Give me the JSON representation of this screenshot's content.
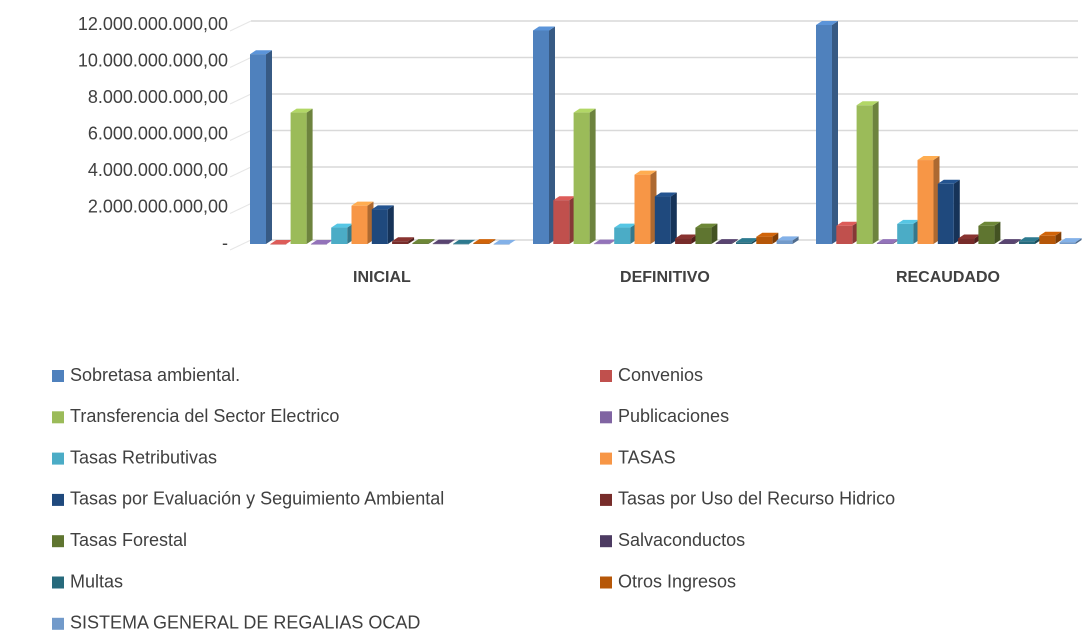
{
  "chart_data": {
    "type": "bar3d",
    "categories": [
      "INICIAL",
      "DEFINITIVO",
      "RECAUDADO"
    ],
    "series": [
      {
        "name": "Sobretasa ambiental.",
        "color": "#4f81bd",
        "values": [
          10400000000,
          11700000000,
          12000000000
        ]
      },
      {
        "name": "Convenios",
        "color": "#c0504d",
        "values": [
          0,
          2400000000,
          1000000000
        ]
      },
      {
        "name": "Transferencia del Sector Electrico",
        "color": "#9bbb59",
        "values": [
          7200000000,
          7200000000,
          7600000000
        ]
      },
      {
        "name": "Publicaciones",
        "color": "#8064a2",
        "values": [
          0,
          20000000,
          50000000
        ]
      },
      {
        "name": "Tasas Retributivas",
        "color": "#4bacc6",
        "values": [
          900000000,
          900000000,
          1100000000
        ]
      },
      {
        "name": "TASAS",
        "color": "#f79646",
        "values": [
          2100000000,
          3800000000,
          4600000000
        ]
      },
      {
        "name": "Tasas por Evaluación y Seguimiento Ambiental",
        "color": "#1f497d",
        "values": [
          1900000000,
          2600000000,
          3300000000
        ]
      },
      {
        "name": "Tasas por Uso del Recurso Hidrico",
        "color": "#772c2a",
        "values": [
          150000000,
          300000000,
          300000000
        ]
      },
      {
        "name": "Tasas Forestal",
        "color": "#5f7530",
        "values": [
          50000000,
          900000000,
          1000000000
        ]
      },
      {
        "name": "Salvaconductos",
        "color": "#4d3b62",
        "values": [
          20000000,
          50000000,
          50000000
        ]
      },
      {
        "name": "Multas",
        "color": "#276a7c",
        "values": [
          10000000,
          100000000,
          150000000
        ]
      },
      {
        "name": "Otros Ingresos",
        "color": "#b65708",
        "values": [
          50000000,
          400000000,
          450000000
        ]
      },
      {
        "name": "SISTEMA GENERAL DE REGALIAS OCAD",
        "color": "#729aca",
        "values": [
          0,
          200000000,
          100000000
        ]
      }
    ],
    "ylim": [
      0,
      12000000000
    ],
    "yticks": [
      {
        "value": 0,
        "label": "-"
      },
      {
        "value": 2000000000,
        "label": "2.000.000.000,00"
      },
      {
        "value": 4000000000,
        "label": "4.000.000.000,00"
      },
      {
        "value": 6000000000,
        "label": "6.000.000.000,00"
      },
      {
        "value": 8000000000,
        "label": "8.000.000.000,00"
      },
      {
        "value": 10000000000,
        "label": "10.000.000.000,00"
      },
      {
        "value": 12000000000,
        "label": "12.000.000.000,00"
      }
    ],
    "grid": true,
    "legend": "bottom"
  }
}
